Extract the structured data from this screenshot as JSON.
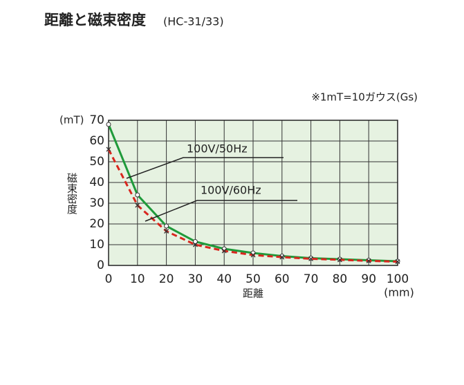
{
  "chart_data": {
    "type": "line",
    "title": "距離と磁束密度",
    "subtitle": "(HC-31/33)",
    "annotation": "※1mT=10ガウス(Gs)",
    "y_label": "磁束密度",
    "y_unit": "(mT)",
    "x_label": "距離",
    "x_unit": "(mm)",
    "x": [
      0,
      10,
      20,
      30,
      40,
      50,
      60,
      70,
      80,
      90,
      100
    ],
    "series": [
      {
        "name": "100V/50Hz",
        "color": "#1f9a3a",
        "dash": false,
        "values": [
          68,
          34,
          19,
          11.5,
          8,
          6,
          4.5,
          3.5,
          3,
          2.5,
          2
        ]
      },
      {
        "name": "100V/60Hz",
        "color": "#d8261e",
        "dash": true,
        "values": [
          56,
          29,
          16.5,
          10,
          7,
          5,
          4,
          3.2,
          2.7,
          2.2,
          1.8
        ]
      }
    ],
    "xlim": [
      0,
      100
    ],
    "xticks": [
      0,
      10,
      20,
      30,
      40,
      50,
      60,
      70,
      80,
      90,
      100
    ],
    "ylim": [
      0,
      70
    ],
    "yticks": [
      0,
      10,
      20,
      30,
      40,
      50,
      60,
      70
    ],
    "grid": true
  }
}
